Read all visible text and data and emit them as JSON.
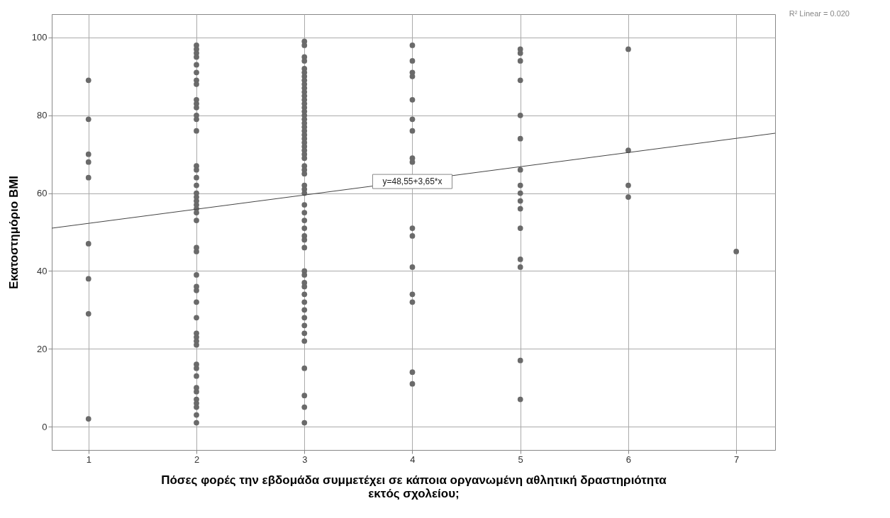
{
  "chart_data": {
    "type": "scatter",
    "xlabel": "Πόσες φορές την εβδομάδα συμμετέχει σε κάποια οργανωμένη αθλητική δραστηριότητα εκτός σχολείου;",
    "ylabel": "Εκατοστημόριο BMI",
    "xlim": [
      0.66,
      7.36
    ],
    "ylim": [
      -6,
      106
    ],
    "xticks": [
      1,
      2,
      3,
      4,
      5,
      6,
      7
    ],
    "yticks": [
      0,
      20,
      40,
      60,
      80,
      100
    ],
    "grid": true,
    "marker": "circle",
    "annotations": [
      "R² Linear = 0.020",
      {
        "text": "y=48,55+3,65*x",
        "x": 4.0,
        "y": 63
      }
    ],
    "series": [
      {
        "color": "#6a6a6a",
        "x": [
          1,
          1,
          1,
          1,
          1,
          1,
          1,
          1,
          1
        ],
        "values": [
          89,
          79,
          70,
          68,
          64,
          47,
          38,
          29,
          2
        ]
      },
      {
        "color": "#6a6a6a",
        "x": [
          2,
          2,
          2,
          2,
          2,
          2,
          2,
          2,
          2,
          2,
          2,
          2,
          2,
          2,
          2,
          2,
          2,
          2,
          2,
          2,
          2,
          2,
          2,
          2,
          2,
          2,
          2,
          2,
          2,
          2,
          2,
          2,
          2,
          2,
          2,
          2,
          2,
          2,
          2,
          2,
          2,
          2,
          2,
          2,
          2,
          2
        ],
        "values": [
          98,
          97,
          96,
          95,
          93,
          91,
          89,
          88,
          84,
          83,
          82,
          80,
          79,
          76,
          67,
          66,
          64,
          62,
          60,
          59,
          58,
          57,
          56,
          55,
          53,
          46,
          45,
          39,
          36,
          35,
          32,
          28,
          24,
          23,
          22,
          21,
          16,
          15,
          13,
          10,
          9,
          7,
          6,
          5,
          3,
          1
        ]
      },
      {
        "color": "#6a6a6a",
        "x": [
          3,
          3,
          3,
          3,
          3,
          3,
          3,
          3,
          3,
          3,
          3,
          3,
          3,
          3,
          3,
          3,
          3,
          3,
          3,
          3,
          3,
          3,
          3,
          3,
          3,
          3,
          3,
          3,
          3,
          3,
          3,
          3,
          3,
          3,
          3,
          3,
          3,
          3,
          3,
          3,
          3,
          3,
          3,
          3,
          3,
          3,
          3,
          3,
          3,
          3,
          3,
          3,
          3,
          3,
          3,
          3
        ],
        "values": [
          99,
          98,
          95,
          94,
          92,
          91,
          90,
          89,
          88,
          87,
          86,
          85,
          84,
          83,
          82,
          81,
          80,
          79,
          78,
          77,
          76,
          75,
          74,
          73,
          72,
          71,
          70,
          69,
          67,
          66,
          65,
          62,
          61,
          60,
          57,
          55,
          53,
          51,
          49,
          48,
          46,
          40,
          39,
          37,
          36,
          34,
          32,
          30,
          28,
          26,
          24,
          22,
          15,
          8,
          5,
          1
        ]
      },
      {
        "color": "#6a6a6a",
        "x": [
          4,
          4,
          4,
          4,
          4,
          4,
          4,
          4,
          4,
          4,
          4,
          4,
          4,
          4,
          4,
          4
        ],
        "values": [
          98,
          94,
          91,
          90,
          84,
          79,
          76,
          69,
          68,
          51,
          49,
          41,
          34,
          32,
          14,
          11
        ]
      },
      {
        "color": "#6a6a6a",
        "x": [
          5,
          5,
          5,
          5,
          5,
          5,
          5,
          5,
          5,
          5,
          5,
          5,
          5,
          5,
          5,
          5
        ],
        "values": [
          97,
          96,
          94,
          89,
          80,
          74,
          66,
          62,
          60,
          58,
          56,
          51,
          43,
          41,
          17,
          7
        ]
      },
      {
        "color": "#6a6a6a",
        "x": [
          6,
          6,
          6,
          6
        ],
        "values": [
          97,
          71,
          62,
          59
        ]
      },
      {
        "color": "#6a6a6a",
        "x": [
          7
        ],
        "values": [
          45
        ]
      },
      {
        "type": "line",
        "marker": "none",
        "color": "#444444",
        "x": [
          0.66,
          7.36
        ],
        "values": [
          51.0,
          75.4
        ]
      }
    ]
  }
}
